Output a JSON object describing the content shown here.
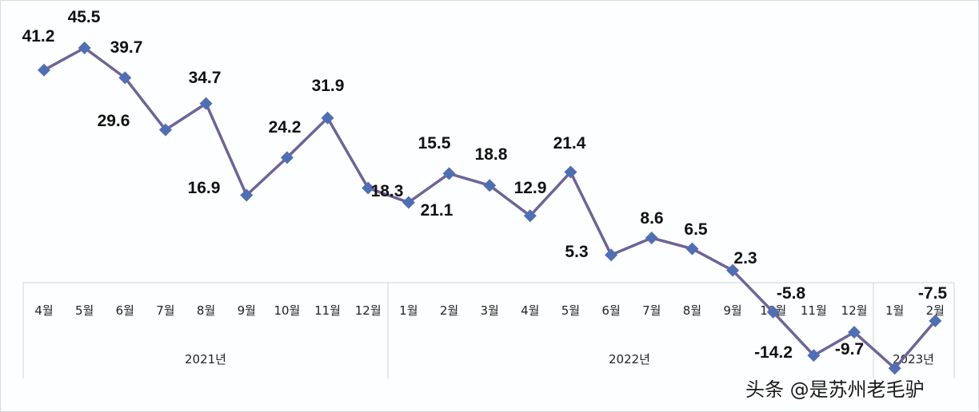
{
  "chart_data": {
    "type": "line",
    "title": "",
    "xlabel": "",
    "ylabel": "",
    "categories": [
      "4월",
      "5월",
      "6월",
      "7월",
      "8월",
      "9월",
      "10월",
      "11월",
      "12월",
      "1월",
      "2월",
      "3월",
      "4월",
      "5월",
      "6월",
      "7월",
      "8월",
      "9월",
      "10월",
      "11월",
      "12월",
      "1월",
      "2월"
    ],
    "year_groups": [
      {
        "label": "2021년",
        "start": 0,
        "end": 8
      },
      {
        "label": "2022년",
        "start": 9,
        "end": 20
      },
      {
        "label": "2023년",
        "start": 21,
        "end": 22
      }
    ],
    "series": [
      {
        "name": "",
        "values": [
          41.2,
          45.5,
          39.7,
          29.6,
          34.7,
          16.9,
          24.2,
          31.9,
          18.3,
          15.5,
          21.1,
          18.8,
          12.9,
          21.4,
          5.3,
          8.6,
          6.5,
          2.3,
          -5.8,
          -14.2,
          -9.7,
          -16.7,
          -7.5
        ],
        "data_labels": [
          "41.2",
          "45.5",
          "39.7",
          "29.6",
          "34.7",
          "16.9",
          "24.2",
          "31.9",
          "18.3",
          "15.5",
          "21.1",
          "18.8",
          "12.9",
          "21.4",
          "5.3",
          "8.6",
          "6.5",
          "2.3",
          "-5.8",
          "-14.2",
          "-9.7",
          "",
          "-7.5"
        ],
        "line_color": "#6e6399",
        "marker_color": "#4f6fb5",
        "marker": "diamond"
      }
    ],
    "ylim": [
      -17,
      46
    ],
    "grid": false,
    "legend": "none"
  },
  "labels": {
    "months": [
      "4월",
      "5월",
      "6월",
      "7월",
      "8월",
      "9월",
      "10월",
      "11월",
      "12월",
      "1월",
      "2월",
      "3월",
      "4월",
      "5월",
      "6월",
      "7월",
      "8월",
      "9월",
      "10월",
      "11월",
      "12월",
      "1월",
      "2월"
    ],
    "years": [
      "2021년",
      "2022년",
      "2023년"
    ]
  },
  "watermark": "头条 @是苏州老毛驴"
}
